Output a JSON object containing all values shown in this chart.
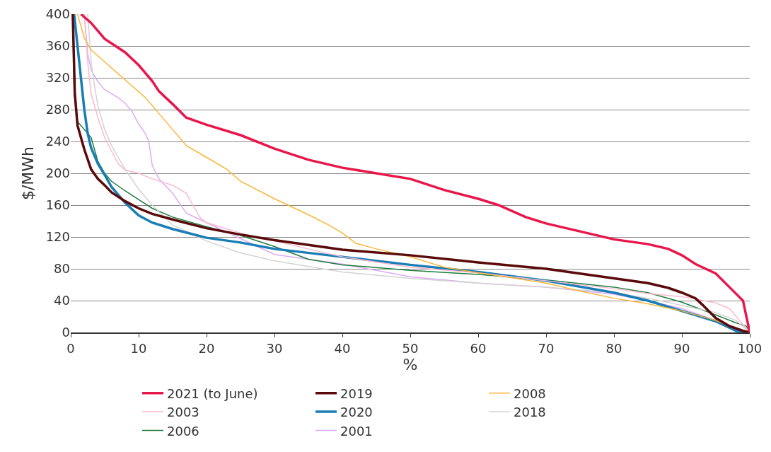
{
  "chart_data": {
    "type": "line",
    "xlabel": "%",
    "ylabel": "$/MWh",
    "xlim": [
      0,
      100
    ],
    "ylim": [
      0,
      400
    ],
    "xticks": [
      0,
      10,
      20,
      30,
      40,
      50,
      60,
      70,
      80,
      90,
      100
    ],
    "yticks": [
      0,
      40,
      80,
      120,
      160,
      200,
      240,
      280,
      320,
      360,
      400
    ],
    "grid": "y",
    "legend": "bottom",
    "marker": "none",
    "line_style": "solid",
    "series": [
      {
        "name": "2021 (to June)",
        "color": "#e8174b",
        "x": [
          1.5,
          3,
          5,
          8,
          10,
          12,
          13,
          15,
          17,
          20,
          25,
          30,
          35,
          40,
          45,
          50,
          55,
          60,
          63,
          67,
          70,
          75,
          80,
          85,
          88,
          90,
          92,
          95,
          97,
          99,
          100
        ],
        "values": [
          400,
          389,
          369,
          352,
          336,
          316,
          303,
          287,
          270,
          261,
          248,
          231,
          217,
          207,
          200,
          193,
          179,
          168,
          160,
          145,
          137,
          127,
          117,
          111,
          105,
          97,
          86,
          74,
          57,
          40,
          0
        ]
      },
      {
        "name": "2019",
        "color": "#5a0a0a",
        "x": [
          0.3,
          0.6,
          1,
          2,
          3,
          4,
          5,
          6,
          8,
          10,
          12,
          15,
          20,
          25,
          30,
          40,
          50,
          60,
          70,
          80,
          85,
          88,
          90,
          92,
          93,
          95,
          97,
          99,
          100
        ],
        "values": [
          400,
          300,
          260,
          230,
          205,
          193,
          185,
          176,
          165,
          156,
          149,
          142,
          131,
          123,
          116,
          104,
          97,
          88,
          80,
          68,
          62,
          56,
          50,
          43,
          35,
          18,
          8,
          2,
          0
        ]
      },
      {
        "name": "2008",
        "color": "#fbb637",
        "x": [
          1,
          2,
          3,
          5,
          7,
          9,
          11,
          13,
          15,
          17,
          20,
          23,
          25,
          30,
          35,
          38,
          40,
          42,
          45,
          50,
          55,
          60,
          70,
          75,
          80,
          85,
          90,
          95,
          98,
          100
        ],
        "values": [
          400,
          370,
          355,
          340,
          325,
          310,
          295,
          275,
          255,
          235,
          220,
          205,
          190,
          168,
          148,
          135,
          125,
          112,
          105,
          95,
          82,
          75,
          62,
          52,
          43,
          36,
          27,
          15,
          5,
          0
        ]
      },
      {
        "name": "2003",
        "color": "#fbb9cf",
        "x": [
          2,
          2.5,
          3,
          4,
          5,
          6,
          7,
          8,
          10,
          12,
          15,
          17,
          18,
          19,
          20,
          25,
          30,
          40,
          50,
          60,
          70,
          80,
          85,
          90,
          92,
          95,
          97,
          98.5,
          100
        ],
        "values": [
          400,
          340,
          300,
          270,
          245,
          228,
          212,
          204,
          200,
          193,
          185,
          175,
          160,
          145,
          138,
          125,
          115,
          95,
          82,
          75,
          65,
          55,
          49,
          45,
          42,
          37,
          30,
          15,
          0
        ]
      },
      {
        "name": "2020",
        "color": "#1a7db5",
        "x": [
          0.5,
          1,
          1.5,
          2,
          2.5,
          3,
          4,
          5,
          6,
          8,
          10,
          12,
          15,
          20,
          25,
          30,
          40,
          50,
          60,
          70,
          80,
          85,
          90,
          95,
          98,
          100
        ],
        "values": [
          400,
          360,
          320,
          280,
          250,
          232,
          212,
          198,
          183,
          163,
          147,
          138,
          130,
          119,
          113,
          105,
          95,
          85,
          76,
          65,
          50,
          40,
          27,
          14,
          2,
          0
        ]
      },
      {
        "name": "2018",
        "color": "#d3d3d3",
        "x": [
          2.5,
          3,
          3.5,
          4,
          5,
          6,
          8,
          10,
          12,
          15,
          20,
          25,
          30,
          40,
          50,
          60,
          70,
          80,
          85,
          90,
          95,
          98,
          100
        ],
        "values": [
          400,
          340,
          310,
          285,
          255,
          235,
          205,
          180,
          160,
          135,
          115,
          100,
          90,
          76,
          68,
          62,
          57,
          50,
          43,
          34,
          25,
          15,
          0
        ]
      },
      {
        "name": "2006",
        "color": "#1e7c3c",
        "x": [
          0.3,
          0.5,
          1,
          2,
          3,
          4,
          5,
          6,
          8,
          10,
          12,
          15,
          20,
          25,
          30,
          35,
          40,
          50,
          60,
          70,
          80,
          85,
          90,
          95,
          98,
          99.5,
          100
        ],
        "values": [
          400,
          300,
          265,
          255,
          245,
          215,
          200,
          190,
          178,
          167,
          156,
          145,
          133,
          122,
          108,
          92,
          85,
          78,
          73,
          66,
          57,
          50,
          38,
          22,
          12,
          8,
          0
        ]
      },
      {
        "name": "2001",
        "color": "#dcaaf5",
        "x": [
          2,
          2.5,
          3,
          4,
          5,
          7,
          8,
          9,
          10,
          11,
          11.5,
          12,
          13,
          15,
          17,
          20,
          25,
          30,
          40,
          50,
          60,
          70,
          80,
          85,
          90,
          95,
          98,
          100
        ],
        "values": [
          400,
          350,
          330,
          315,
          305,
          295,
          288,
          278,
          262,
          250,
          240,
          210,
          193,
          175,
          150,
          138,
          118,
          98,
          86,
          70,
          62,
          57,
          48,
          40,
          30,
          15,
          4,
          0
        ]
      }
    ]
  }
}
